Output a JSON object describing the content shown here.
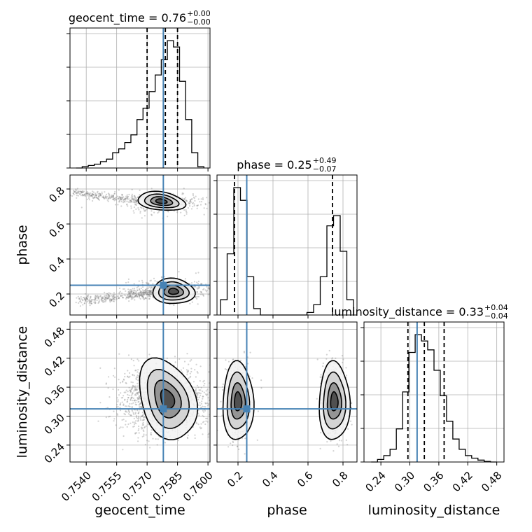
{
  "chart_data": {
    "type": "corner",
    "parameters": [
      "geocent_time",
      "phase",
      "luminosity_distance"
    ],
    "truths": {
      "geocent_time": 0.7578,
      "phase": 0.25,
      "luminosity_distance": 0.315
    },
    "quantile_lines": {
      "geocent_time": [
        0.757,
        0.7579,
        0.7585
      ],
      "phase": [
        0.18,
        0.25,
        0.74
      ],
      "luminosity_distance": [
        0.296,
        0.33,
        0.371
      ]
    },
    "axis_ranges": {
      "geocent_time": [
        0.7532,
        0.7601
      ],
      "phase": [
        0.08,
        0.88
      ],
      "luminosity_distance": [
        0.205,
        0.495
      ]
    },
    "ticks": {
      "geocent_time": [
        "0.7540",
        "0.7555",
        "0.7570",
        "0.7585",
        "0.7600"
      ],
      "phase": [
        "0.2",
        "0.4",
        "0.6",
        "0.8"
      ],
      "luminosity_distance": [
        "0.24",
        "0.30",
        "0.36",
        "0.42",
        "0.48"
      ]
    },
    "titles": [
      {
        "param": "geocent_time",
        "main": "geocent_time = 0.76",
        "sup": "+0.00",
        "sub": "−0.00"
      },
      {
        "param": "phase",
        "main": "phase = 0.25",
        "sup": "+0.49",
        "sub": "−0.07"
      },
      {
        "param": "luminosity_distance",
        "main": "luminosity_distance = 0.33",
        "sup": "+0.04",
        "sub": "−0.04"
      }
    ],
    "histograms": {
      "geocent_time": [
        0,
        0.01,
        0.02,
        0.03,
        0.05,
        0.07,
        0.12,
        0.15,
        0.2,
        0.26,
        0.38,
        0.47,
        0.6,
        0.73,
        0.85,
        1.0,
        0.95,
        0.68,
        0.38,
        0.12,
        0.01
      ],
      "phase": [
        0.12,
        0.48,
        1.0,
        0.9,
        0.3,
        0.05,
        0,
        0,
        0,
        0,
        0,
        0,
        0,
        0.02,
        0.08,
        0.3,
        0.7,
        0.78,
        0.5,
        0.12
      ],
      "luminosity_distance": [
        0,
        0.02,
        0.05,
        0.1,
        0.26,
        0.55,
        0.86,
        1.0,
        0.95,
        0.88,
        0.72,
        0.52,
        0.32,
        0.18,
        0.1,
        0.05,
        0.03,
        0.015,
        0.005,
        0
      ]
    },
    "grid": true
  }
}
